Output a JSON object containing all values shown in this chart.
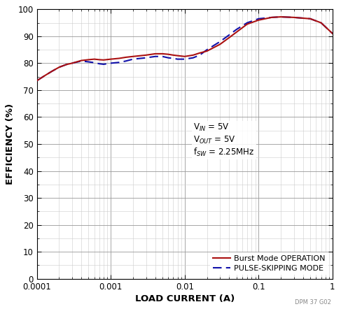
{
  "title": "",
  "xlabel": "LOAD CURRENT (A)",
  "ylabel": "EFFICIENCY (%)",
  "xlim": [
    0.0001,
    1
  ],
  "ylim": [
    0,
    100
  ],
  "yticks": [
    0,
    10,
    20,
    30,
    40,
    50,
    60,
    70,
    80,
    90,
    100
  ],
  "annotation_lines": [
    "V$_{IN}$ = 5V",
    "V$_{OUT}$ = 5V",
    "f$_{SW}$ = 2.25MHz"
  ],
  "burst_color": "#aa1111",
  "pulse_color": "#1111aa",
  "burst_x": [
    0.0001,
    0.00013,
    0.00016,
    0.0002,
    0.00025,
    0.0003,
    0.0004,
    0.0005,
    0.0006,
    0.0007,
    0.0008,
    0.001,
    0.0013,
    0.0016,
    0.002,
    0.003,
    0.004,
    0.005,
    0.006,
    0.007,
    0.008,
    0.01,
    0.013,
    0.016,
    0.02,
    0.03,
    0.04,
    0.05,
    0.07,
    0.1,
    0.15,
    0.2,
    0.3,
    0.5,
    0.7,
    1.0
  ],
  "burst_y": [
    73.5,
    75.5,
    77.0,
    78.5,
    79.5,
    80.0,
    81.0,
    81.3,
    81.5,
    81.3,
    81.2,
    81.5,
    81.8,
    82.2,
    82.5,
    83.0,
    83.5,
    83.5,
    83.3,
    83.0,
    82.8,
    82.5,
    83.0,
    83.8,
    84.5,
    87.0,
    89.5,
    91.5,
    94.5,
    96.0,
    97.0,
    97.2,
    97.0,
    96.5,
    95.0,
    91.0
  ],
  "pulse_x": [
    0.0001,
    0.00013,
    0.00016,
    0.0002,
    0.00025,
    0.0003,
    0.0004,
    0.0005,
    0.0006,
    0.0007,
    0.0008,
    0.001,
    0.0013,
    0.0016,
    0.002,
    0.003,
    0.004,
    0.005,
    0.006,
    0.007,
    0.008,
    0.01,
    0.013,
    0.016,
    0.02,
    0.03,
    0.04,
    0.05,
    0.07,
    0.1,
    0.15,
    0.2,
    0.3,
    0.5,
    0.7,
    1.0
  ],
  "pulse_y": [
    73.5,
    75.5,
    77.0,
    78.5,
    79.5,
    80.0,
    80.8,
    80.5,
    80.2,
    79.8,
    79.6,
    80.0,
    80.3,
    80.8,
    81.5,
    82.0,
    82.5,
    82.5,
    82.0,
    81.8,
    81.5,
    81.5,
    82.0,
    83.0,
    85.0,
    88.0,
    90.5,
    92.5,
    95.0,
    96.5,
    97.0,
    97.2,
    97.0,
    96.5,
    95.0,
    91.0
  ],
  "watermark": "DPM 37 G02",
  "background_color": "#ffffff",
  "grid_major_color": "#999999",
  "grid_minor_color": "#cccccc"
}
